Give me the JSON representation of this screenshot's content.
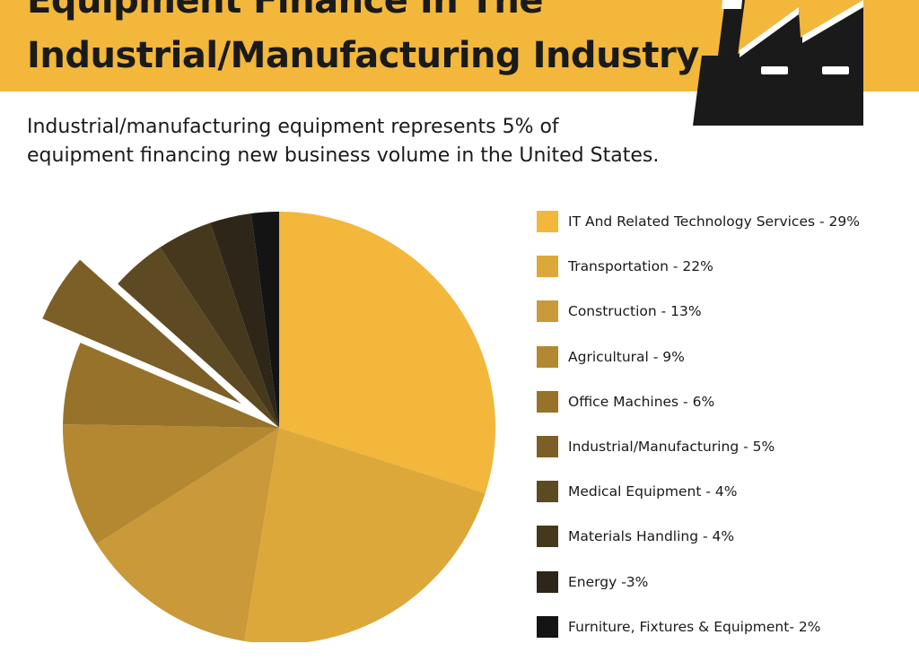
{
  "header": {
    "title_line1": "Equipment Finance In The",
    "title_line2": "Industrial/Manufacturing Industry"
  },
  "subtitle": {
    "line1": "Industrial/manufacturing equipment represents 5% of",
    "line2": "equipment financing new business volume in the United States."
  },
  "colors": {
    "header_bg": "#F2B73B",
    "factory": "#1A1A1A",
    "factory_stripe": "#FFFFFF"
  },
  "icons": [
    "factory-icon"
  ],
  "chart_data": {
    "type": "pie",
    "unit": "%",
    "highlighted": "Industrial/Manufacturing - 5%",
    "slices": [
      {
        "label": "IT And Related Technology Services - 29%",
        "value": 29,
        "color": "#F2B73B"
      },
      {
        "label": "Transportation - 22%",
        "value": 22,
        "color": "#DDA83A"
      },
      {
        "label": "Construction - 13%",
        "value": 13,
        "color": "#C9993A"
      },
      {
        "label": "Agricultural - 9%",
        "value": 9,
        "color": "#B38831"
      },
      {
        "label": "Office Machines - 6%",
        "value": 6,
        "color": "#96722B"
      },
      {
        "label": "Industrial/Manufacturing - 5%",
        "value": 5,
        "color": "#7C5F26",
        "exploded": true
      },
      {
        "label": "Medical Equipment - 4%",
        "value": 4,
        "color": "#5D4A22"
      },
      {
        "label": "Materials Handling - 4%",
        "value": 4,
        "color": "#45381D"
      },
      {
        "label": "Energy -3%",
        "value": 3,
        "color": "#2E2618"
      },
      {
        "label": "Furniture, Fixtures & Equipment- 2%",
        "value": 2,
        "color": "#141414"
      }
    ]
  }
}
